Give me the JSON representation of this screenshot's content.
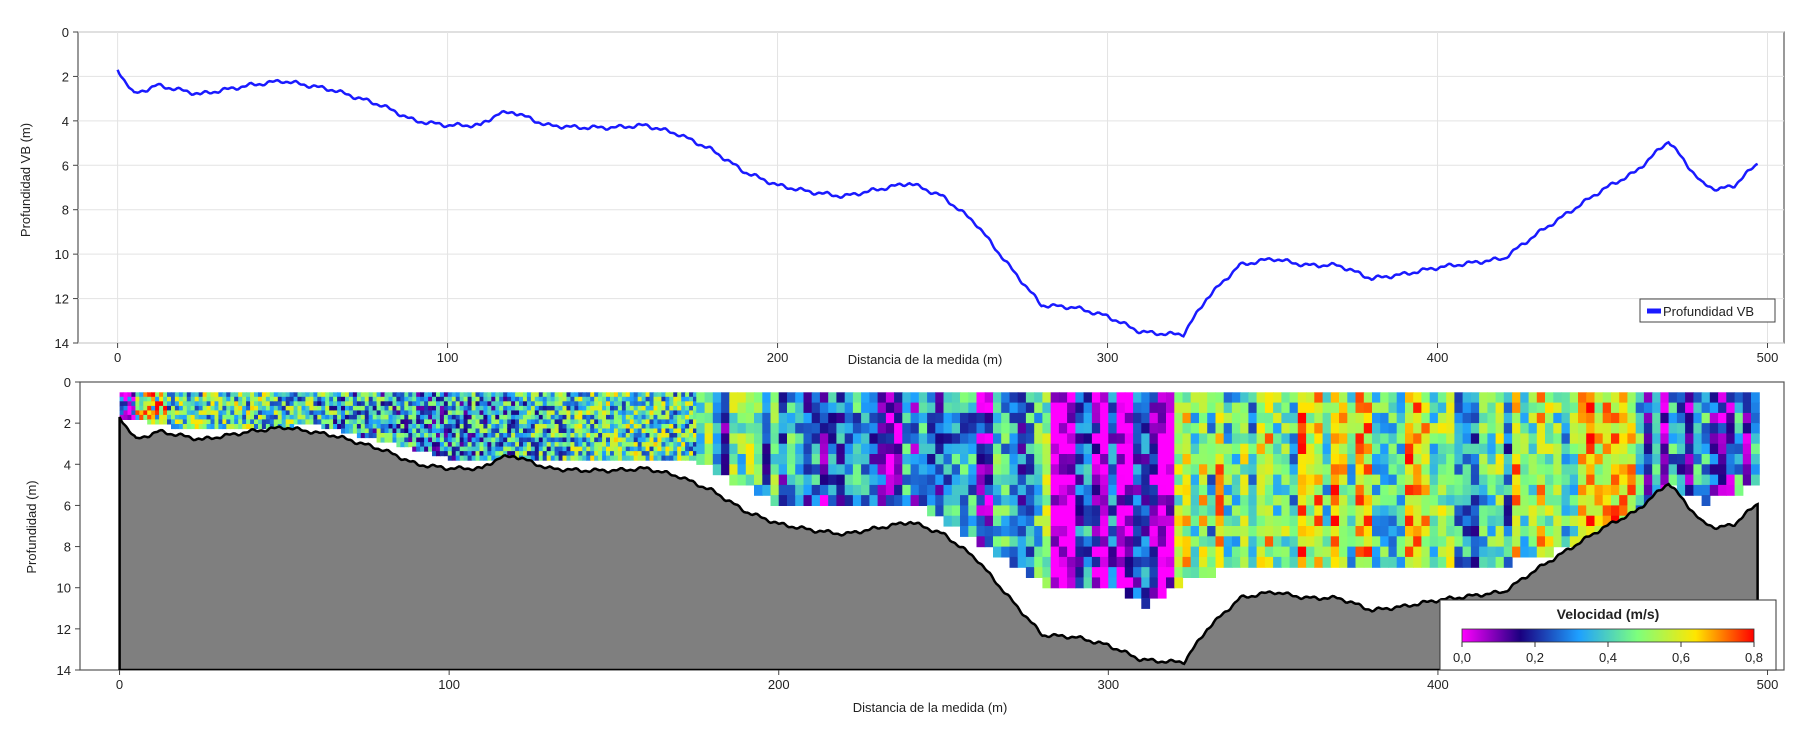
{
  "chart_data": [
    {
      "type": "line",
      "xlabel": "Distancia de la medida (m)",
      "ylabel": "Profundidad VB (m)",
      "xlim": [
        -12,
        505
      ],
      "ylim": [
        14,
        0
      ],
      "y_inverted": true,
      "grid": true,
      "x_ticks": [
        0,
        100,
        200,
        300,
        400,
        500
      ],
      "y_ticks": [
        0,
        2,
        4,
        6,
        8,
        10,
        12,
        14
      ],
      "legend": {
        "position": "bottom-right",
        "entries": [
          "Profundidad VB"
        ]
      },
      "series": [
        {
          "name": "Profundidad VB",
          "color": "#1a1aff",
          "x": [
            0,
            5,
            12,
            25,
            40,
            50,
            65,
            80,
            90,
            100,
            110,
            115,
            120,
            130,
            140,
            150,
            160,
            170,
            180,
            190,
            200,
            210,
            220,
            230,
            240,
            250,
            260,
            270,
            280,
            290,
            300,
            310,
            318,
            323,
            330,
            340,
            350,
            360,
            370,
            380,
            390,
            400,
            410,
            420,
            430,
            440,
            450,
            460,
            465,
            470,
            480,
            485,
            490,
            497
          ],
          "y": [
            1.7,
            2.8,
            2.4,
            2.8,
            2.4,
            2.2,
            2.6,
            3.3,
            4.0,
            4.2,
            4.2,
            3.7,
            3.6,
            4.2,
            4.3,
            4.3,
            4.2,
            4.6,
            5.3,
            6.3,
            6.9,
            7.2,
            7.4,
            7.1,
            6.8,
            7.4,
            8.6,
            10.5,
            12.3,
            12.4,
            12.8,
            13.5,
            13.6,
            13.6,
            12.0,
            10.5,
            10.2,
            10.5,
            10.5,
            11.1,
            10.9,
            10.6,
            10.4,
            10.2,
            9.1,
            8.1,
            7.1,
            6.3,
            5.6,
            4.9,
            6.8,
            7.1,
            6.9,
            5.9
          ]
        }
      ]
    },
    {
      "type": "heatmap",
      "xlabel": "Distancia de la medida (m)",
      "ylabel": "Profundidad (m)",
      "xlim": [
        -12,
        505
      ],
      "ylim": [
        14,
        0
      ],
      "y_inverted": true,
      "x_ticks": [
        0,
        100,
        200,
        300,
        400,
        500
      ],
      "y_ticks": [
        0,
        2,
        4,
        6,
        8,
        10,
        12,
        14
      ],
      "colorbar": {
        "title": "Velocidad (m/s)",
        "range": [
          0,
          0.8
        ],
        "tick_labels": [
          "0,0",
          "0,2",
          "0,4",
          "0,6",
          "0,8"
        ],
        "position": "bottom-right",
        "colors": [
          "#ff00ff",
          "#1a0080",
          "#1ea0ff",
          "#7dff7d",
          "#ffe600",
          "#ff0000"
        ]
      },
      "bottom_profile": {
        "x": [
          0,
          5,
          12,
          25,
          40,
          50,
          65,
          80,
          90,
          100,
          110,
          115,
          120,
          130,
          140,
          150,
          160,
          170,
          180,
          190,
          200,
          210,
          220,
          230,
          240,
          250,
          260,
          270,
          280,
          290,
          300,
          310,
          318,
          323,
          330,
          340,
          350,
          360,
          370,
          380,
          390,
          400,
          410,
          420,
          430,
          440,
          450,
          460,
          465,
          470,
          480,
          485,
          490,
          497
        ],
        "y": [
          1.7,
          2.8,
          2.4,
          2.8,
          2.4,
          2.2,
          2.6,
          3.3,
          4.0,
          4.2,
          4.2,
          3.7,
          3.6,
          4.2,
          4.3,
          4.3,
          4.2,
          4.6,
          5.3,
          6.3,
          6.9,
          7.2,
          7.4,
          7.1,
          6.8,
          7.4,
          8.6,
          10.5,
          12.3,
          12.4,
          12.8,
          13.5,
          13.6,
          13.6,
          12.0,
          10.5,
          10.2,
          10.5,
          10.5,
          11.1,
          10.9,
          10.6,
          10.4,
          10.2,
          9.1,
          8.1,
          7.1,
          6.3,
          5.6,
          4.9,
          6.8,
          7.1,
          6.9,
          5.9
        ],
        "fill": "#7f7f7f"
      },
      "measured_cells": {
        "top_depth": 0.5,
        "x": [
          0,
          20,
          60,
          100,
          140,
          175,
          185,
          200,
          220,
          240,
          260,
          280,
          300,
          310,
          320,
          340,
          380,
          400,
          420,
          440,
          460,
          470,
          480,
          497
        ],
        "bottom_depth": [
          1.6,
          2.2,
          2.0,
          3.6,
          3.7,
          3.6,
          4.6,
          5.8,
          5.8,
          5.6,
          7.6,
          9.6,
          9.6,
          10.6,
          9.6,
          8.6,
          8.8,
          8.6,
          8.6,
          7.8,
          6.2,
          5.0,
          5.6,
          4.6
        ]
      }
    }
  ]
}
